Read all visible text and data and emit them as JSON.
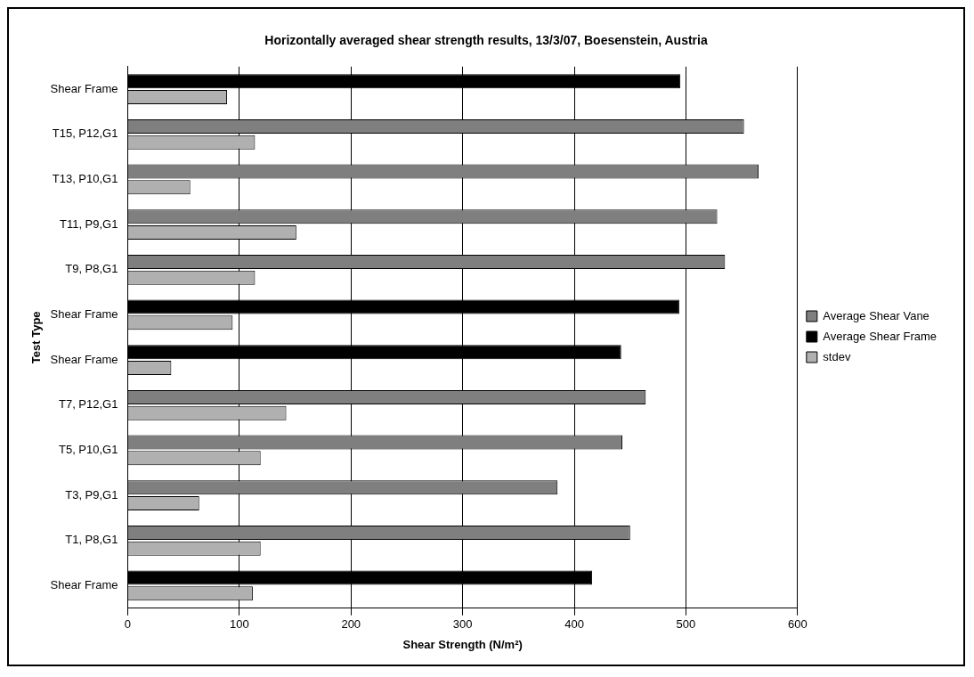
{
  "chart_data": {
    "type": "bar",
    "orientation": "horizontal",
    "title": "Horizontally averaged shear strength results, 13/3/07, Boesenstein, Austria",
    "xlabel": "Shear Strength (N/m²)",
    "ylabel": "Test Type",
    "categories": [
      "Shear Frame",
      "T15, P12,G1",
      "T13, P10,G1",
      "T11, P9,G1",
      "T9, P8,G1",
      "Shear Frame",
      "Shear Frame",
      "T7, P12,G1",
      "T5, P10,G1",
      "T3, P9,G1",
      "T1, P8,G1",
      "Shear Frame"
    ],
    "series": [
      {
        "name": "Average Shear Vane",
        "color": "#7f7f7f",
        "values": [
          null,
          552,
          565,
          528,
          535,
          null,
          null,
          464,
          443,
          385,
          450,
          null
        ]
      },
      {
        "name": "Average Shear Frame",
        "color": "#000000",
        "values": [
          495,
          null,
          null,
          null,
          null,
          494,
          442,
          null,
          null,
          null,
          null,
          416
        ]
      },
      {
        "name": "stdev",
        "color": "#b0b0b0",
        "values": [
          89,
          114,
          56,
          151,
          114,
          94,
          39,
          142,
          119,
          64,
          119,
          112
        ]
      }
    ],
    "xlim": [
      0,
      600
    ],
    "xticks": [
      0,
      100,
      200,
      300,
      400,
      500,
      600
    ],
    "grid": "x",
    "legend": "right"
  }
}
